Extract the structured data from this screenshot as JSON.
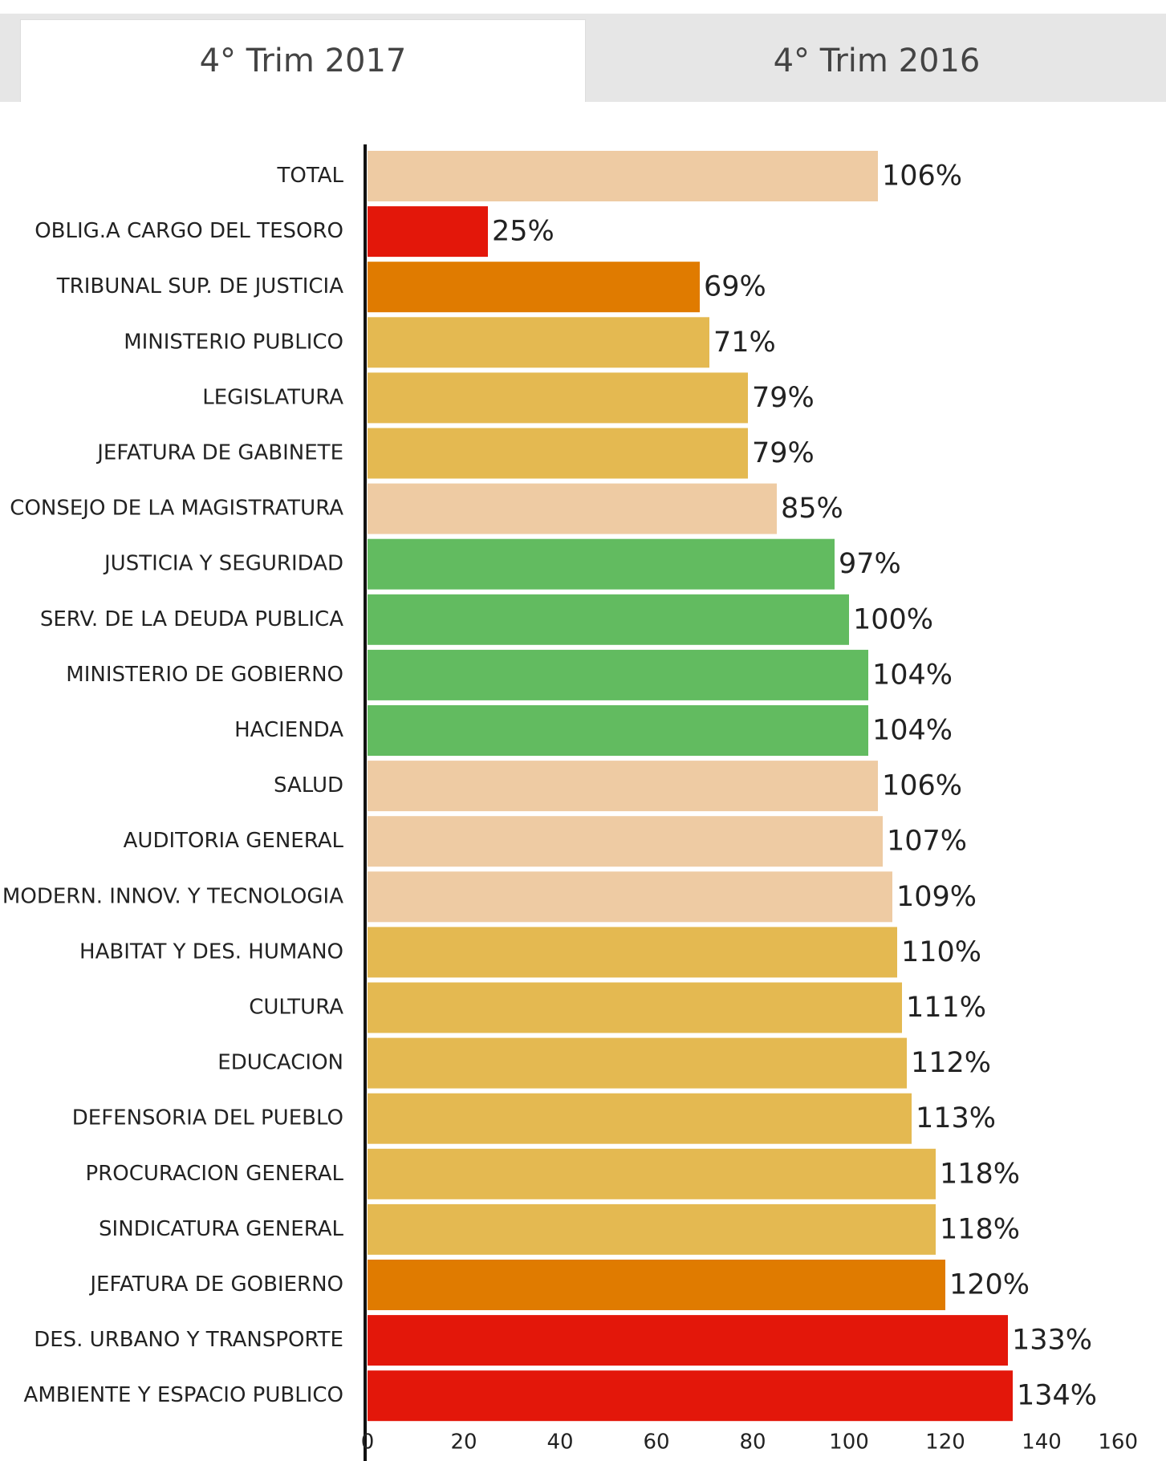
{
  "tabs": [
    "4° Trim 2017",
    "4° Trim 2016"
  ],
  "chart_data": {
    "type": "barh",
    "categories": [
      "TOTAL",
      "OBLIG.A CARGO DEL TESORO",
      "TRIBUNAL SUP. DE JUSTICIA",
      "MINISTERIO PUBLICO",
      "LEGISLATURA",
      "JEFATURA DE GABINETE",
      "CONSEJO DE LA MAGISTRATURA",
      "JUSTICIA Y SEGURIDAD",
      "SERV. DE LA DEUDA PUBLICA",
      "MINISTERIO DE GOBIERNO",
      "HACIENDA",
      "SALUD",
      "AUDITORIA GENERAL",
      "MODERN. INNOV. Y TECNOLOGIA",
      "HABITAT Y DES. HUMANO",
      "CULTURA",
      "EDUCACION",
      "DEFENSORIA DEL PUEBLO",
      "PROCURACION GENERAL",
      "SINDICATURA GENERAL",
      "JEFATURA DE GOBIERNO",
      "DES. URBANO Y TRANSPORTE",
      "AMBIENTE Y ESPACIO PUBLICO"
    ],
    "values": [
      106,
      25,
      69,
      71,
      79,
      79,
      85,
      97,
      100,
      104,
      104,
      106,
      107,
      109,
      110,
      111,
      112,
      113,
      118,
      118,
      120,
      133,
      134
    ],
    "value_labels": [
      "106%",
      "25%",
      "69%",
      "71%",
      "79%",
      "79%",
      "85%",
      "97%",
      "100%",
      "104%",
      "104%",
      "106%",
      "107%",
      "109%",
      "110%",
      "111%",
      "112%",
      "113%",
      "118%",
      "118%",
      "120%",
      "133%",
      "134%"
    ],
    "colors": [
      "#eecba3",
      "#e3170a",
      "#e07b00",
      "#e4b951",
      "#e4b951",
      "#e4b951",
      "#eecba3",
      "#62bb60",
      "#62bb60",
      "#62bb60",
      "#62bb60",
      "#eecba3",
      "#eecba3",
      "#eecba3",
      "#e4b951",
      "#e4b951",
      "#e4b951",
      "#e4b951",
      "#e4b951",
      "#e4b951",
      "#e07b00",
      "#e3170a",
      "#e3170a"
    ],
    "xlim": [
      0,
      160
    ],
    "xticks": [
      0,
      20,
      40,
      60,
      80,
      100,
      120,
      140,
      160
    ]
  }
}
